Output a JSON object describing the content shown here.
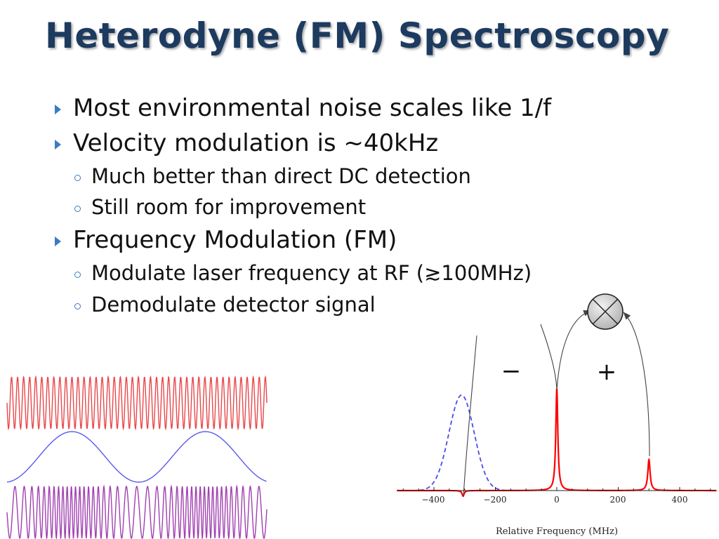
{
  "slide": {
    "title": "Heterodyne (FM) Spectroscopy",
    "bullets": [
      {
        "level": 1,
        "text": "Most environmental noise scales like 1/f"
      },
      {
        "level": 1,
        "text": "Velocity modulation is ~40kHz"
      },
      {
        "level": 2,
        "text": "Much better than direct DC detection"
      },
      {
        "level": 2,
        "text": "Still room for improvement"
      },
      {
        "level": 1,
        "text": "Frequency Modulation (FM)"
      },
      {
        "level": 2,
        "text": "Modulate laser frequency at RF (≳100MHz)"
      },
      {
        "level": 2,
        "text": "Demodulate detector signal"
      }
    ]
  },
  "waveforms": {
    "carrier_color": "#e8474a",
    "modulation_color": "#5a5aee",
    "fm_color": "#a040b0"
  },
  "spectrum": {
    "xlabel": "Relative Frequency (MHz)",
    "x_ticks": [
      -400,
      -200,
      0,
      200,
      400
    ],
    "x_tick_labels": [
      "−400",
      "−200",
      "0",
      "200",
      "400"
    ],
    "minus_label": "−",
    "plus_label": "+",
    "mixer_icon": "mixer-circle-cross-icon",
    "line_color": "#ff0000",
    "absorption_color": "#4a4aee"
  }
}
